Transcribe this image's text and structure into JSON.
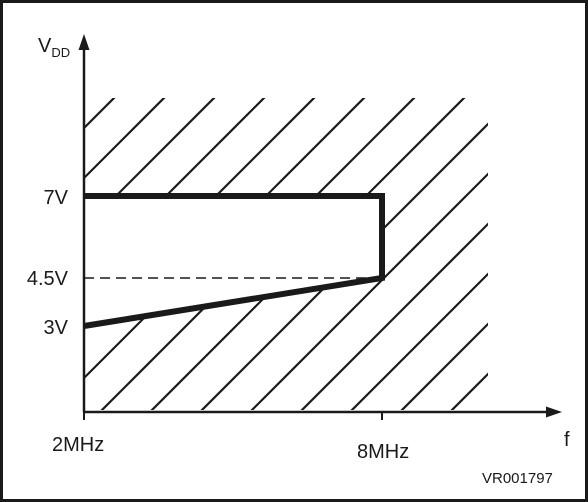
{
  "diagram": {
    "y_axis": {
      "symbol": "V",
      "subscript": "DD"
    },
    "x_axis": {
      "symbol": "f"
    },
    "y_ticks": [
      "7V",
      "4.5V",
      "3V"
    ],
    "x_ticks": [
      "2MHz",
      "8MHz"
    ],
    "figure_code": "VR001797"
  },
  "operating_area": {
    "unit_x": "MHz",
    "unit_y": "V",
    "boundary": [
      {
        "f": 2,
        "v": 7
      },
      {
        "f": 8,
        "v": 7
      },
      {
        "f": 8,
        "v": 4.5
      },
      {
        "f": 2,
        "v": 3
      }
    ]
  }
}
